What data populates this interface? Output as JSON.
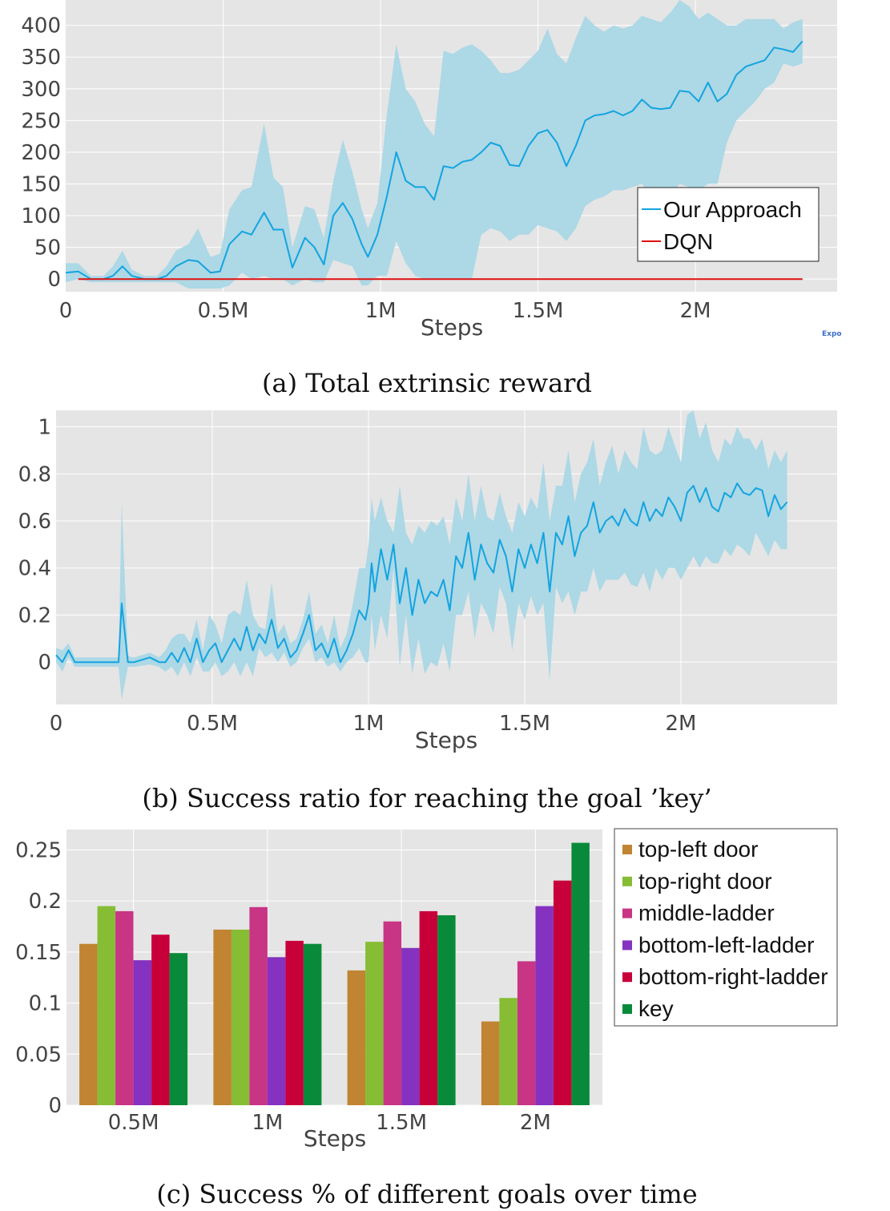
{
  "colors": {
    "plot_bg": "#e5e5e5",
    "grid": "#ffffff",
    "blue_line": "#12a4e0",
    "blue_band": "#add8e6",
    "red": "#e01010",
    "bar_colors": [
      "#c08432",
      "#86bd34",
      "#c83585",
      "#8432bf",
      "#c8003a",
      "#098a3a"
    ]
  },
  "watermark": "Expo",
  "chart_data": [
    {
      "type": "line",
      "caption": "(a) Total extrinsic reward",
      "xlabel": "Steps",
      "ylabel": "",
      "xlim": [
        0,
        2450000
      ],
      "ylim": [
        -20,
        440
      ],
      "xticks": [
        0,
        500000,
        1000000,
        1500000,
        2000000
      ],
      "xtick_labels": [
        "0",
        "0.5M",
        "1M",
        "1.5M",
        "2M"
      ],
      "yticks": [
        0,
        50,
        100,
        150,
        200,
        250,
        300,
        350,
        400
      ],
      "ytick_labels": [
        "0",
        "50",
        "100",
        "150",
        "200",
        "250",
        "300",
        "350",
        "400"
      ],
      "legend": [
        "Our Approach",
        "DQN"
      ],
      "series": [
        {
          "name": "Our Approach",
          "x": [
            0,
            40000,
            80000,
            120000,
            150000,
            180000,
            210000,
            250000,
            290000,
            320000,
            350000,
            390000,
            420000,
            460000,
            490000,
            520000,
            560000,
            590000,
            630000,
            660000,
            690000,
            720000,
            760000,
            790000,
            820000,
            850000,
            880000,
            910000,
            940000,
            960000,
            990000,
            1020000,
            1050000,
            1080000,
            1110000,
            1140000,
            1170000,
            1200000,
            1230000,
            1260000,
            1290000,
            1320000,
            1350000,
            1380000,
            1410000,
            1440000,
            1470000,
            1500000,
            1530000,
            1560000,
            1590000,
            1620000,
            1650000,
            1680000,
            1710000,
            1740000,
            1770000,
            1800000,
            1830000,
            1860000,
            1890000,
            1920000,
            1950000,
            1980000,
            2010000,
            2040000,
            2070000,
            2100000,
            2130000,
            2160000,
            2190000,
            2220000,
            2250000,
            2280000,
            2310000,
            2340000
          ],
          "values": [
            10,
            12,
            0,
            0,
            5,
            20,
            5,
            0,
            0,
            5,
            20,
            30,
            28,
            10,
            12,
            55,
            75,
            70,
            105,
            78,
            78,
            18,
            65,
            50,
            23,
            100,
            120,
            95,
            55,
            35,
            70,
            130,
            200,
            155,
            145,
            145,
            125,
            178,
            175,
            185,
            188,
            200,
            215,
            210,
            180,
            178,
            210,
            230,
            235,
            215,
            178,
            210,
            250,
            258,
            260,
            265,
            258,
            265,
            283,
            270,
            268,
            270,
            297,
            295,
            280,
            310,
            280,
            292,
            322,
            335,
            340,
            345,
            365,
            362,
            358,
            375
          ],
          "upper": [
            25,
            25,
            5,
            5,
            20,
            45,
            15,
            5,
            5,
            20,
            45,
            55,
            80,
            35,
            40,
            110,
            140,
            145,
            245,
            160,
            145,
            50,
            115,
            110,
            65,
            155,
            220,
            170,
            110,
            80,
            120,
            260,
            370,
            300,
            280,
            245,
            225,
            360,
            355,
            365,
            370,
            360,
            345,
            325,
            325,
            330,
            345,
            360,
            395,
            355,
            340,
            380,
            415,
            400,
            390,
            400,
            395,
            400,
            415,
            410,
            405,
            420,
            440,
            430,
            410,
            420,
            410,
            400,
            400,
            410,
            410,
            410,
            410,
            395,
            405,
            410
          ],
          "lower": [
            -5,
            0,
            -5,
            -5,
            -5,
            -5,
            -5,
            -5,
            -5,
            -5,
            -5,
            -15,
            -15,
            -15,
            -15,
            -10,
            10,
            0,
            5,
            0,
            0,
            -10,
            0,
            -5,
            -5,
            30,
            25,
            20,
            -10,
            -10,
            5,
            5,
            60,
            25,
            5,
            0,
            0,
            0,
            0,
            0,
            0,
            70,
            80,
            75,
            60,
            70,
            70,
            85,
            80,
            75,
            60,
            80,
            115,
            125,
            130,
            140,
            140,
            145,
            150,
            130,
            130,
            130,
            150,
            145,
            140,
            150,
            150,
            215,
            250,
            265,
            280,
            300,
            310,
            340,
            335,
            340
          ]
        },
        {
          "name": "DQN",
          "x": [
            40000,
            2340000
          ],
          "values": [
            0,
            0
          ]
        }
      ]
    },
    {
      "type": "line",
      "caption": "(b) Success ratio for reaching the goal ’key’",
      "xlabel": "Steps",
      "ylabel": "",
      "xlim": [
        0,
        2500000
      ],
      "ylim": [
        -0.18,
        1.07
      ],
      "xticks": [
        0,
        500000,
        1000000,
        1500000,
        2000000
      ],
      "xtick_labels": [
        "0",
        "0.5M",
        "1M",
        "1.5M",
        "2M"
      ],
      "yticks": [
        0,
        0.2,
        0.4,
        0.6,
        0.8,
        1
      ],
      "ytick_labels": [
        "0",
        "0.2",
        "0.4",
        "0.6",
        "0.8",
        "1"
      ],
      "series": [
        {
          "name": "Our Approach",
          "x": [
            0,
            20000,
            40000,
            60000,
            80000,
            100000,
            150000,
            180000,
            200000,
            210000,
            230000,
            240000,
            250000,
            300000,
            330000,
            350000,
            370000,
            390000,
            410000,
            430000,
            450000,
            470000,
            490000,
            510000,
            530000,
            550000,
            570000,
            590000,
            610000,
            630000,
            650000,
            670000,
            690000,
            710000,
            730000,
            750000,
            770000,
            790000,
            810000,
            830000,
            850000,
            870000,
            890000,
            910000,
            930000,
            950000,
            970000,
            990000,
            1000000,
            1010000,
            1020000,
            1040000,
            1060000,
            1080000,
            1100000,
            1120000,
            1140000,
            1160000,
            1180000,
            1200000,
            1220000,
            1240000,
            1260000,
            1280000,
            1300000,
            1320000,
            1340000,
            1360000,
            1380000,
            1400000,
            1420000,
            1440000,
            1460000,
            1480000,
            1500000,
            1520000,
            1540000,
            1560000,
            1580000,
            1600000,
            1620000,
            1640000,
            1660000,
            1680000,
            1700000,
            1720000,
            1740000,
            1760000,
            1780000,
            1800000,
            1820000,
            1840000,
            1860000,
            1880000,
            1900000,
            1920000,
            1940000,
            1960000,
            1980000,
            2000000,
            2020000,
            2040000,
            2060000,
            2080000,
            2100000,
            2120000,
            2140000,
            2160000,
            2180000,
            2200000,
            2220000,
            2240000,
            2260000,
            2280000,
            2300000,
            2320000,
            2340000
          ],
          "values": [
            0.03,
            0.0,
            0.05,
            0.0,
            0.0,
            0.0,
            0.0,
            0.0,
            0.0,
            0.25,
            0.0,
            0.0,
            0.0,
            0.02,
            0.0,
            0.0,
            0.04,
            0.0,
            0.06,
            0.0,
            0.1,
            0.0,
            0.05,
            0.08,
            0.0,
            0.05,
            0.1,
            0.05,
            0.15,
            0.05,
            0.12,
            0.08,
            0.18,
            0.06,
            0.1,
            0.02,
            0.05,
            0.12,
            0.2,
            0.05,
            0.08,
            0.02,
            0.1,
            0.0,
            0.05,
            0.12,
            0.22,
            0.18,
            0.25,
            0.42,
            0.3,
            0.48,
            0.35,
            0.5,
            0.25,
            0.4,
            0.2,
            0.35,
            0.25,
            0.3,
            0.28,
            0.35,
            0.22,
            0.45,
            0.4,
            0.55,
            0.35,
            0.5,
            0.42,
            0.38,
            0.52,
            0.45,
            0.3,
            0.48,
            0.4,
            0.5,
            0.42,
            0.55,
            0.3,
            0.55,
            0.5,
            0.62,
            0.45,
            0.55,
            0.58,
            0.68,
            0.55,
            0.6,
            0.62,
            0.58,
            0.65,
            0.6,
            0.58,
            0.68,
            0.6,
            0.65,
            0.62,
            0.7,
            0.66,
            0.6,
            0.72,
            0.75,
            0.68,
            0.74,
            0.66,
            0.64,
            0.72,
            0.7,
            0.76,
            0.72,
            0.71,
            0.74,
            0.73,
            0.62,
            0.71,
            0.65,
            0.68
          ],
          "upper": [
            0.06,
            0.05,
            0.08,
            0.02,
            0.02,
            0.02,
            0.02,
            0.02,
            0.02,
            0.68,
            0.03,
            0.02,
            0.02,
            0.04,
            0.02,
            0.05,
            0.1,
            0.12,
            0.12,
            0.08,
            0.18,
            0.05,
            0.2,
            0.16,
            0.08,
            0.2,
            0.22,
            0.2,
            0.35,
            0.2,
            0.15,
            0.14,
            0.34,
            0.12,
            0.16,
            0.08,
            0.1,
            0.18,
            0.3,
            0.12,
            0.16,
            0.08,
            0.2,
            0.06,
            0.12,
            0.25,
            0.4,
            0.4,
            0.5,
            0.7,
            0.6,
            0.7,
            0.6,
            0.55,
            0.75,
            0.55,
            0.5,
            0.58,
            0.55,
            0.6,
            0.58,
            0.62,
            0.5,
            0.7,
            0.6,
            0.8,
            0.6,
            0.75,
            0.62,
            0.6,
            0.72,
            0.62,
            0.55,
            0.68,
            0.62,
            0.7,
            0.65,
            0.85,
            0.6,
            0.75,
            0.75,
            0.9,
            0.68,
            0.8,
            0.85,
            0.95,
            0.75,
            0.85,
            0.92,
            0.8,
            0.9,
            0.85,
            0.82,
            1.0,
            0.9,
            0.88,
            0.9,
            1.0,
            0.92,
            0.85,
            1.05,
            1.07,
            0.95,
            1.02,
            0.9,
            0.85,
            0.95,
            0.92,
            1.0,
            0.95,
            0.95,
            0.9,
            0.95,
            0.82,
            0.9,
            0.85,
            0.9
          ],
          "lower": [
            0.0,
            -0.04,
            0.02,
            -0.02,
            -0.02,
            -0.02,
            -0.02,
            -0.02,
            -0.02,
            -0.16,
            -0.02,
            -0.02,
            -0.02,
            -0.01,
            -0.02,
            -0.04,
            -0.02,
            -0.06,
            0.0,
            -0.06,
            0.02,
            -0.04,
            -0.04,
            0.0,
            -0.06,
            -0.04,
            0.0,
            -0.06,
            0.0,
            -0.06,
            0.06,
            0.02,
            0.04,
            0.0,
            0.04,
            -0.02,
            0.0,
            0.06,
            0.1,
            0.0,
            0.02,
            -0.02,
            0.0,
            -0.04,
            0.0,
            0.02,
            0.06,
            0.0,
            0.0,
            0.2,
            0.05,
            0.2,
            0.1,
            0.4,
            -0.02,
            0.2,
            -0.05,
            0.1,
            -0.05,
            0.0,
            -0.02,
            0.08,
            -0.04,
            0.2,
            0.2,
            0.3,
            0.1,
            0.25,
            0.2,
            0.12,
            0.32,
            0.25,
            0.05,
            0.25,
            0.18,
            0.28,
            0.2,
            0.25,
            -0.08,
            0.32,
            0.25,
            0.3,
            0.2,
            0.3,
            0.3,
            0.4,
            0.3,
            0.35,
            0.35,
            0.35,
            0.38,
            0.33,
            0.32,
            0.38,
            0.3,
            0.4,
            0.35,
            0.4,
            0.4,
            0.35,
            0.4,
            0.45,
            0.4,
            0.45,
            0.42,
            0.42,
            0.48,
            0.45,
            0.5,
            0.48,
            0.45,
            0.55,
            0.5,
            0.45,
            0.52,
            0.48,
            0.48
          ]
        }
      ]
    },
    {
      "type": "bar",
      "caption": "(c) Success % of different goals over time",
      "xlabel": "Steps",
      "ylabel": "",
      "ylim": [
        0,
        0.27
      ],
      "yticks": [
        0,
        0.05,
        0.1,
        0.15,
        0.2,
        0.25
      ],
      "ytick_labels": [
        "0",
        "0.05",
        "0.1",
        "0.15",
        "0.2",
        "0.25"
      ],
      "categories": [
        "0.5M",
        "1M",
        "1.5M",
        "2M"
      ],
      "series": [
        {
          "name": "top-left door",
          "values": [
            0.158,
            0.172,
            0.132,
            0.082
          ]
        },
        {
          "name": "top-right door",
          "values": [
            0.195,
            0.172,
            0.16,
            0.105
          ]
        },
        {
          "name": "middle-ladder",
          "values": [
            0.19,
            0.194,
            0.18,
            0.141
          ]
        },
        {
          "name": "bottom-left-ladder",
          "values": [
            0.142,
            0.145,
            0.154,
            0.195
          ]
        },
        {
          "name": "bottom-right-ladder",
          "values": [
            0.167,
            0.161,
            0.19,
            0.22
          ]
        },
        {
          "name": "key",
          "values": [
            0.149,
            0.158,
            0.186,
            0.257
          ]
        }
      ]
    }
  ]
}
